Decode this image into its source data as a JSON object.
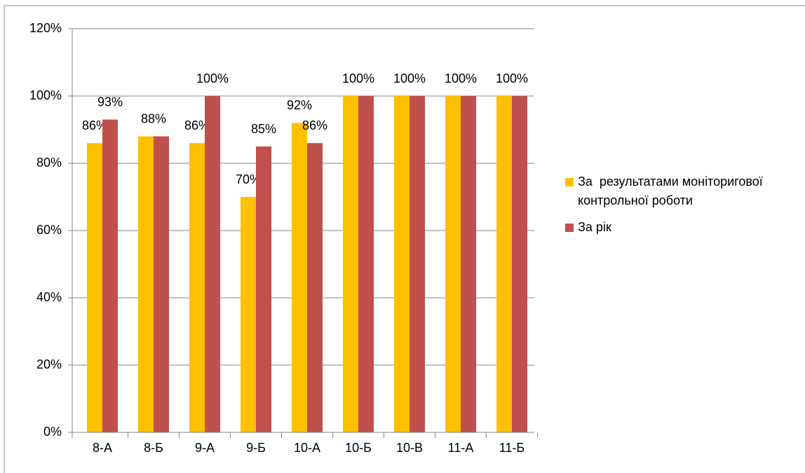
{
  "chart_data": {
    "type": "bar",
    "categories": [
      "8-А",
      "8-Б",
      "9-А",
      "9-Б",
      "10-А",
      "10-Б",
      "10-В",
      "11-А",
      "11-Б"
    ],
    "series": [
      {
        "name": "За  результатами моніторигової контрольної роботи",
        "color": "#ffc000",
        "values": [
          86,
          88,
          86,
          70,
          92,
          100,
          100,
          100,
          100
        ],
        "value_labels": [
          "86%",
          null,
          "86%",
          "70%",
          "92%",
          null,
          null,
          null,
          null
        ]
      },
      {
        "name": "За рік",
        "color": "#c0504d",
        "values": [
          93,
          88,
          100,
          85,
          86,
          100,
          100,
          100,
          100
        ],
        "value_labels": [
          "93%",
          "88%",
          "100%",
          "85%",
          "86%",
          "100%",
          "100%",
          "100%",
          "100%"
        ]
      }
    ],
    "ylim": [
      0,
      120
    ],
    "yticks": [
      {
        "value": 0,
        "label": "0%"
      },
      {
        "value": 20,
        "label": "20%"
      },
      {
        "value": 40,
        "label": "40%"
      },
      {
        "value": 60,
        "label": "60%"
      },
      {
        "value": 80,
        "label": "80%"
      },
      {
        "value": 100,
        "label": "100%"
      },
      {
        "value": 120,
        "label": "120%"
      }
    ],
    "grid": true,
    "legend": "right"
  }
}
